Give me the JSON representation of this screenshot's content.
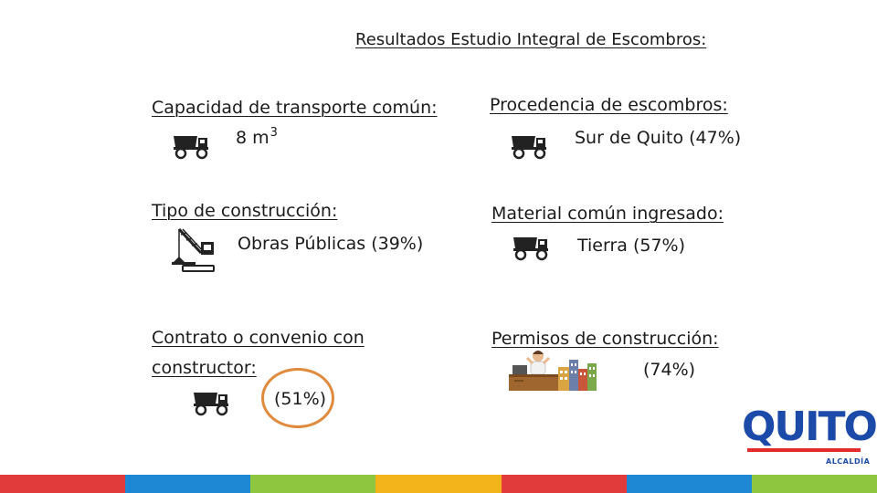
{
  "title": "Resultados Estudio Integral de Escombros:",
  "capacidad": {
    "label": "Capacidad de transporte común:",
    "value": "8 m",
    "sup": "3"
  },
  "procedencia": {
    "label": "Procedencia de escombros:",
    "value": "Sur de Quito (47%)"
  },
  "tipo": {
    "label": "Tipo de construcción:",
    "value": "Obras Públicas (39%)"
  },
  "material": {
    "label": "Material común ingresado:",
    "value": "Tierra (57%)"
  },
  "contrato": {
    "label_line1": "Contrato o convenio con",
    "label_line2": "constructor:",
    "value": "(51%)"
  },
  "permisos": {
    "label": "Permisos de construcción:",
    "value": "(74%)"
  },
  "logo": {
    "word": "QUITO",
    "sub": "ALCALDÍA"
  },
  "colors": {
    "highlight_circle": "#e08a3c",
    "logo_blue": "#1c4aa8",
    "stripe": [
      "#e23b3b",
      "#1e88d4",
      "#8ec63f",
      "#f3b31b",
      "#e23b3b",
      "#1e88d4",
      "#8ec63f"
    ]
  },
  "icons": [
    "dump-truck-icon",
    "crane-icon",
    "office-worker-city-icon"
  ]
}
